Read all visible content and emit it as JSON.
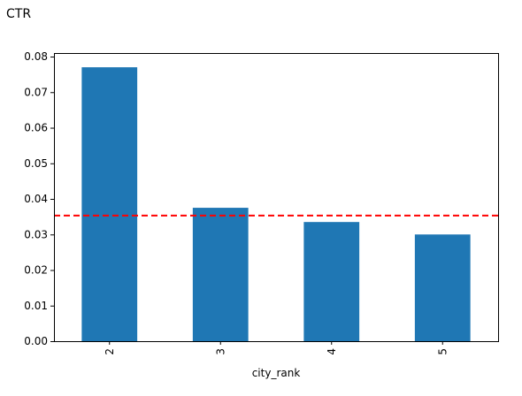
{
  "heading": "CTR",
  "chart_data": {
    "type": "bar",
    "categories": [
      "2",
      "3",
      "4",
      "5"
    ],
    "values": [
      0.077,
      0.0375,
      0.0335,
      0.03
    ],
    "xlabel": "city_rank",
    "ylabel": "",
    "ylim": [
      0,
      0.081
    ],
    "yticks": [
      "0.00",
      "0.01",
      "0.02",
      "0.03",
      "0.04",
      "0.05",
      "0.06",
      "0.07",
      "0.08"
    ],
    "xtick_rotation": "vertical",
    "reference_line": {
      "y": 0.0353,
      "style": "dashed",
      "color": "#ff0000"
    },
    "bar_color": "#1f77b4",
    "grid": false,
    "legend": "none"
  }
}
